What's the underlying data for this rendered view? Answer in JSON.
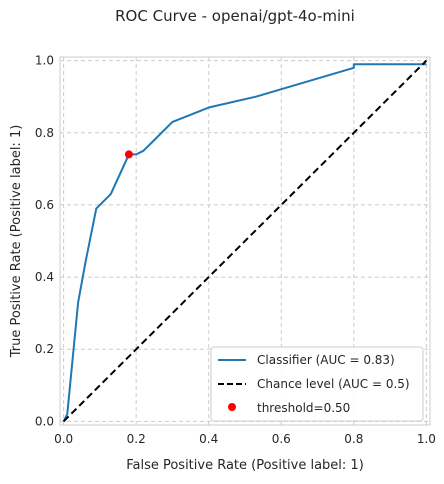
{
  "chart_data": {
    "type": "line",
    "title": "ROC Curve - openai/gpt-4o-mini",
    "xlabel": "False Positive Rate (Positive label: 1)",
    "ylabel": "True Positive Rate (Positive label: 1)",
    "xlim": [
      -0.01,
      1.01
    ],
    "ylim": [
      -0.01,
      1.01
    ],
    "x_ticks": [
      "0.0",
      "0.2",
      "0.4",
      "0.6",
      "0.8",
      "1.0"
    ],
    "y_ticks": [
      "0.0",
      "0.2",
      "0.4",
      "0.6",
      "0.8",
      "1.0"
    ],
    "grid": true,
    "legend_position": "lower-right",
    "series": [
      {
        "name": "Classifier (AUC = 0.83)",
        "kind": "line",
        "color": "#1f77b4",
        "points": [
          [
            0.0,
            0.0
          ],
          [
            0.01,
            0.02
          ],
          [
            0.04,
            0.33
          ],
          [
            0.06,
            0.44
          ],
          [
            0.09,
            0.59
          ],
          [
            0.13,
            0.63
          ],
          [
            0.18,
            0.74
          ],
          [
            0.2,
            0.74
          ],
          [
            0.22,
            0.75
          ],
          [
            0.25,
            0.78
          ],
          [
            0.3,
            0.83
          ],
          [
            0.4,
            0.87
          ],
          [
            0.53,
            0.9
          ],
          [
            0.8,
            0.98
          ],
          [
            0.8,
            0.99
          ],
          [
            1.0,
            0.99
          ]
        ]
      },
      {
        "name": "Chance level (AUC = 0.5)",
        "kind": "dashed-line",
        "color": "#000000",
        "points": [
          [
            0.0,
            0.0
          ],
          [
            1.0,
            1.0
          ]
        ]
      },
      {
        "name": "threshold=0.50",
        "kind": "marker",
        "color": "#ff0000",
        "points": [
          [
            0.18,
            0.74
          ]
        ]
      }
    ]
  }
}
